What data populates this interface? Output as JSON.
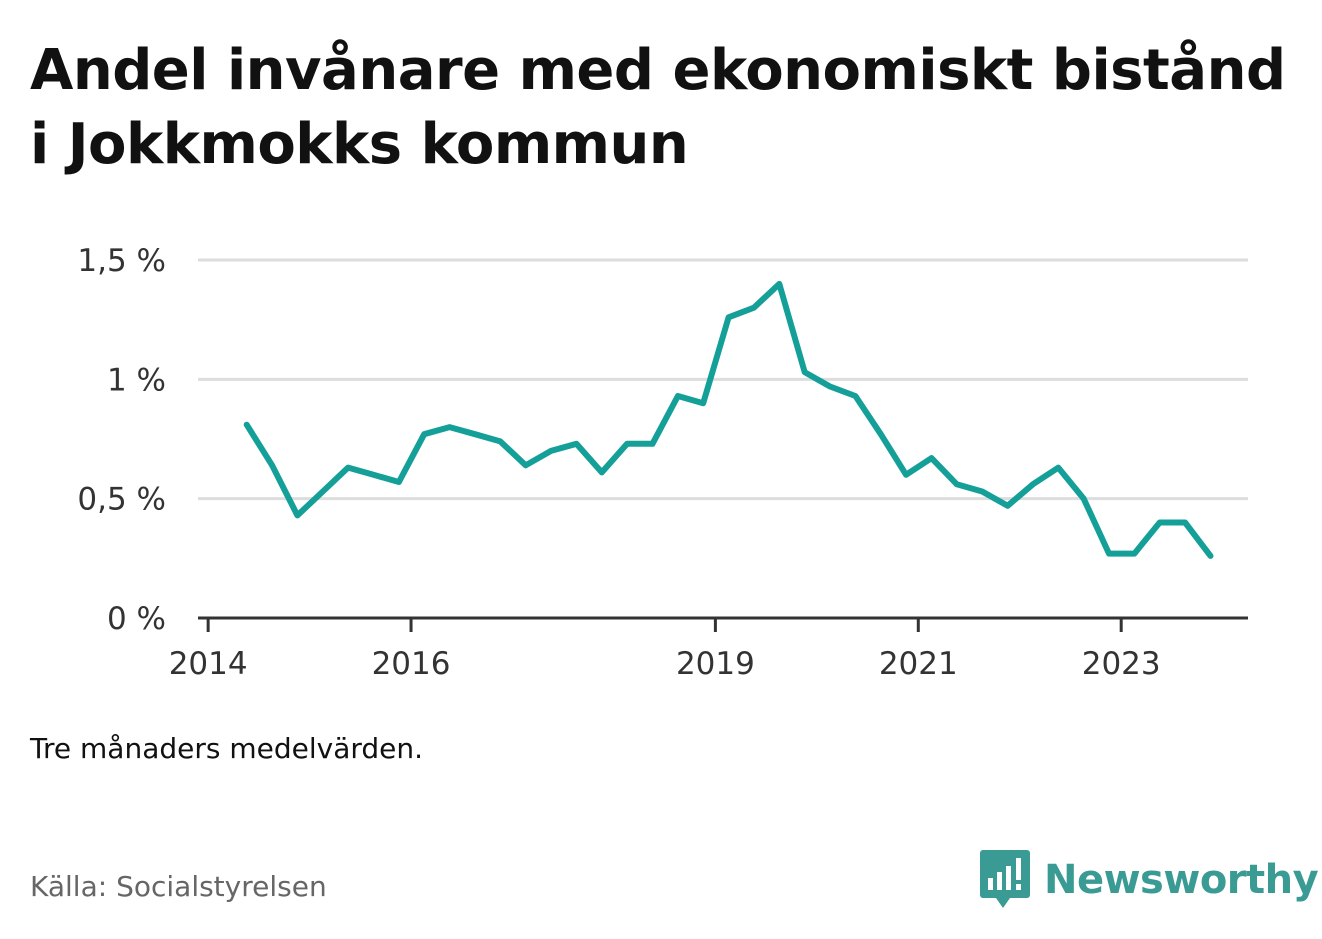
{
  "title": "Andel invånare med ekonomiskt bistånd i Jokkmokks kommun",
  "note": "Tre månaders medelvärden.",
  "source": "Källa: Socialstyrelsen",
  "brand": {
    "name": "Newsworthy",
    "color": "#3a9b94",
    "icon": "newsworthy-logo-icon"
  },
  "colors": {
    "line": "#14a098",
    "grid": "#dddddd",
    "axis": "#333333"
  },
  "chart_data": {
    "type": "line",
    "title": "Andel invånare med ekonomiskt bistånd i Jokkmokks kommun",
    "xlabel": "",
    "ylabel": "",
    "y_ticks": [
      0,
      0.5,
      1,
      1.5
    ],
    "y_tick_labels": [
      "0 %",
      "0,5 %",
      "1 %",
      "1,5 %"
    ],
    "ylim": [
      0,
      1.5
    ],
    "x_ticks": [
      2014,
      2016,
      2019,
      2021,
      2023
    ],
    "x_tick_labels": [
      "2014",
      "2016",
      "2019",
      "2021",
      "2023"
    ],
    "xlim": [
      2013.9,
      2024.25
    ],
    "grid": true,
    "series": [
      {
        "x": [
          2014.38,
          2014.63,
          2014.88,
          2015.13,
          2015.38,
          2015.63,
          2015.88,
          2016.13,
          2016.38,
          2016.63,
          2016.88,
          2017.13,
          2017.38,
          2017.63,
          2017.88,
          2018.13,
          2018.38,
          2018.63,
          2018.88,
          2019.13,
          2019.38,
          2019.63,
          2019.88,
          2020.13,
          2020.38,
          2020.63,
          2020.88,
          2021.13,
          2021.38,
          2021.63,
          2021.88,
          2022.13,
          2022.38,
          2022.63,
          2022.88,
          2023.13,
          2023.38,
          2023.63,
          2023.88
        ],
        "values": [
          0.81,
          0.64,
          0.43,
          0.53,
          0.63,
          0.6,
          0.57,
          0.77,
          0.8,
          0.77,
          0.74,
          0.64,
          0.7,
          0.73,
          0.61,
          0.73,
          0.73,
          0.93,
          0.9,
          1.26,
          1.3,
          1.4,
          1.03,
          0.97,
          0.93,
          0.77,
          0.6,
          0.67,
          0.56,
          0.53,
          0.47,
          0.56,
          0.63,
          0.5,
          0.27,
          0.27,
          0.4,
          0.4,
          0.26
        ]
      }
    ]
  }
}
